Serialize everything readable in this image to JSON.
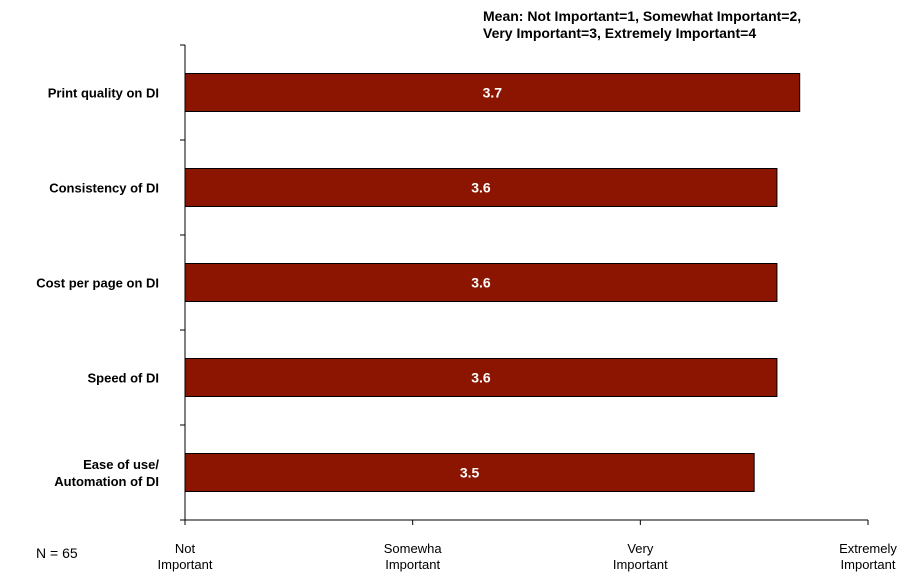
{
  "chart_data": {
    "type": "bar",
    "orientation": "horizontal",
    "categories": [
      "Print quality on DI",
      "Consistency of DI",
      "Cost per page on DI",
      "Speed of DI",
      "Ease of use/ Automation of DI"
    ],
    "category_lines": [
      [
        "Print quality on DI"
      ],
      [
        "Consistency of DI"
      ],
      [
        "Cost per page on DI"
      ],
      [
        "Speed of DI"
      ],
      [
        "Ease of use/",
        "Automation of DI"
      ]
    ],
    "values": [
      3.7,
      3.6,
      3.6,
      3.6,
      3.5
    ],
    "value_labels": [
      "3.7",
      "3.6",
      "3.6",
      "3.6",
      "3.5"
    ],
    "xlim": [
      1,
      4
    ],
    "x_ticks": [
      {
        "value": 1,
        "lines": [
          "Not",
          "Important"
        ]
      },
      {
        "value": 2,
        "lines": [
          "Somewha",
          "Important"
        ]
      },
      {
        "value": 3,
        "lines": [
          "Very",
          "Important"
        ]
      },
      {
        "value": 4,
        "lines": [
          "Extremely",
          "Important"
        ]
      }
    ],
    "bar_color": "#8B1500",
    "grid": false
  },
  "annotation": "Mean: Not Important=1, Somewhat Important=2,\nVery Important=3, Extremely Important=4",
  "sample_size": "N = 65"
}
